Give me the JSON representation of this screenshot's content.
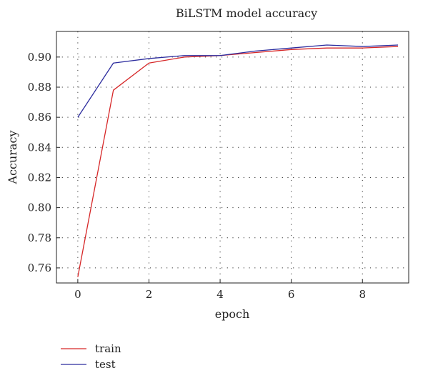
{
  "chart_data": {
    "type": "line",
    "title": "BiLSTM model accuracy",
    "xlabel": "epoch",
    "ylabel": "Accuracy",
    "x": [
      0,
      1,
      2,
      3,
      4,
      5,
      6,
      7,
      8,
      9
    ],
    "series": [
      {
        "name": "train",
        "color": "#d62728",
        "values": [
          0.754,
          0.878,
          0.896,
          0.9,
          0.901,
          0.903,
          0.905,
          0.906,
          0.906,
          0.907
        ]
      },
      {
        "name": "test",
        "color": "#2c2c9e",
        "values": [
          0.86,
          0.896,
          0.899,
          0.901,
          0.901,
          0.904,
          0.906,
          0.908,
          0.907,
          0.908
        ]
      }
    ],
    "xlim": [
      -0.6,
      9.3
    ],
    "ylim": [
      0.75,
      0.917
    ],
    "xticks": [
      0,
      2,
      4,
      6,
      8
    ],
    "yticks": [
      0.76,
      0.78,
      0.8,
      0.82,
      0.84,
      0.86,
      0.88,
      0.9
    ],
    "grid": true,
    "legend": "bottom-left"
  }
}
